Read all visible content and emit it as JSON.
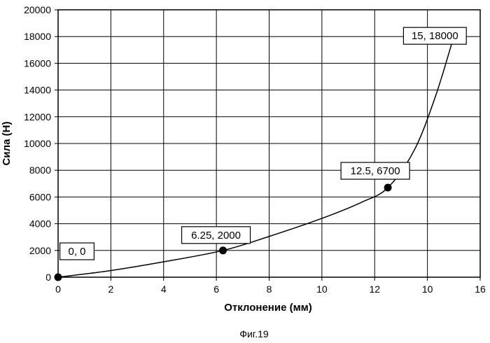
{
  "chart_data": {
    "type": "line",
    "caption": "Фиг.19",
    "xlabel": "Отклонение (мм)",
    "ylabel": "Сила (Н)",
    "xlim": [
      0,
      16
    ],
    "ylim": [
      0,
      20000
    ],
    "grid": true,
    "x_ticks": [
      "0",
      "2",
      "4",
      "6",
      "8",
      "10",
      "12",
      "10",
      "16"
    ],
    "y_ticks": [
      "0",
      "2000",
      "4000",
      "6000",
      "8000",
      "10000",
      "12000",
      "14000",
      "16000",
      "18000",
      "20000"
    ],
    "series": [
      {
        "x": [
          0,
          2,
          4,
          6.25,
          8,
          10,
          11.5,
          12.5,
          13.5,
          14.3,
          15
        ],
        "y": [
          0,
          500,
          1150,
          2000,
          3050,
          4400,
          5600,
          6700,
          9500,
          13500,
          18000
        ]
      }
    ],
    "data_labels": [
      {
        "text": "0, 0",
        "x": 0,
        "y": 0
      },
      {
        "text": "6.25, 2000",
        "x": 6.25,
        "y": 2000
      },
      {
        "text": "12.5, 6700",
        "x": 12.5,
        "y": 6700
      },
      {
        "text": "15, 18000",
        "x": 15,
        "y": 18000
      }
    ]
  }
}
